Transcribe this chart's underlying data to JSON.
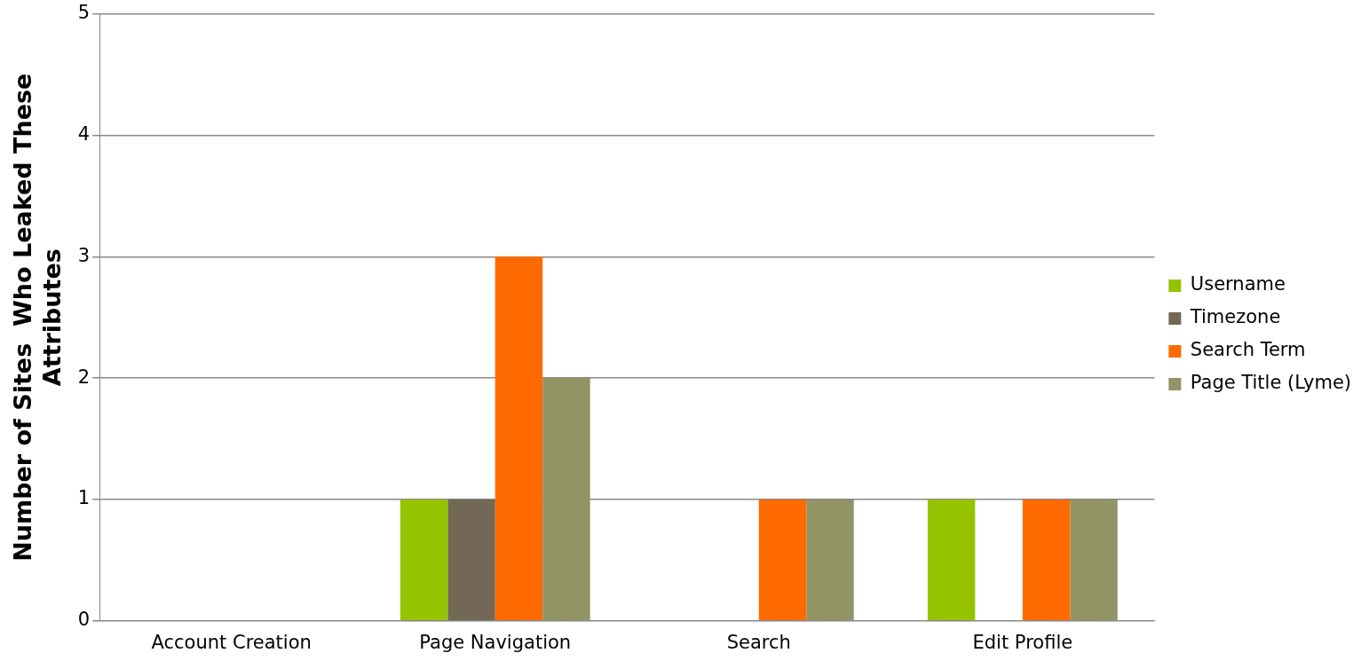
{
  "chart_data": {
    "type": "bar",
    "ylabel": "Number of Sites  Who Leaked These Attributes",
    "categories": [
      "Account Creation",
      "Page Navigation",
      "Search",
      "Edit Profile"
    ],
    "series": [
      {
        "name": "Username",
        "color": "#96c300",
        "values": [
          0,
          1,
          0,
          1
        ]
      },
      {
        "name": "Timezone",
        "color": "#736856",
        "values": [
          0,
          1,
          0,
          0
        ]
      },
      {
        "name": "Search Term",
        "color": "#ff6a00",
        "values": [
          0,
          3,
          1,
          1
        ]
      },
      {
        "name": "Page Title (Lyme)",
        "color": "#929466",
        "values": [
          0,
          2,
          1,
          1
        ]
      }
    ],
    "ylim": [
      0,
      5
    ],
    "yticks": [
      0,
      1,
      2,
      3,
      4,
      5
    ],
    "grid": "y",
    "legend": "right"
  }
}
